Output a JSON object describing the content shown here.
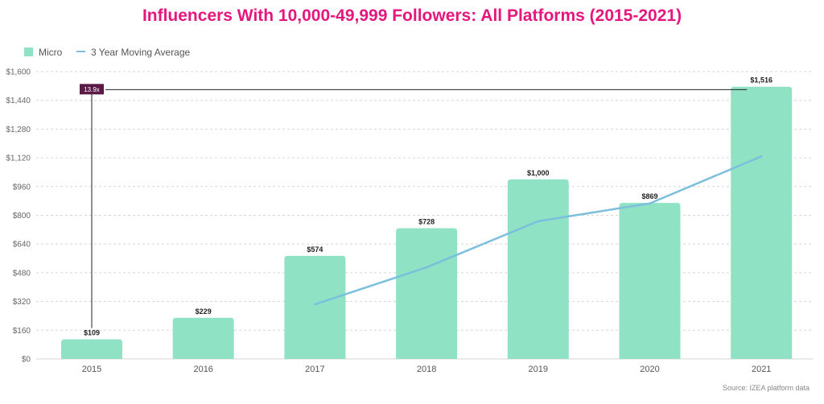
{
  "chart_data": {
    "type": "bar",
    "title": "Influencers With 10,000-49,999 Followers: All Platforms (2015-2021)",
    "categories": [
      "2015",
      "2016",
      "2017",
      "2018",
      "2019",
      "2020",
      "2021"
    ],
    "series": [
      {
        "name": "Micro",
        "type": "bar",
        "values": [
          109,
          229,
          574,
          728,
          1000,
          869,
          1516
        ],
        "labels": [
          "$109",
          "$229",
          "$574",
          "$728",
          "$1,000",
          "$869",
          "$1,516"
        ]
      },
      {
        "name": "3 Year Moving Average",
        "type": "line",
        "values": [
          null,
          null,
          304,
          510,
          767,
          866,
          1128
        ]
      }
    ],
    "ylim": [
      0,
      1600
    ],
    "yticks": [
      0,
      160,
      320,
      480,
      640,
      800,
      960,
      1120,
      1280,
      1440,
      1600
    ],
    "ytick_labels": [
      "$0",
      "$160",
      "$320",
      "$480",
      "$640",
      "$800",
      "$960",
      "$1,120",
      "$1,280",
      "$1,440",
      "$1,600"
    ],
    "grid": true,
    "legend": "top-left",
    "annotation": {
      "text": "13.9x",
      "from": "2015",
      "to": "2021",
      "level": 1500
    },
    "source": "Source: IZEA platform data",
    "colors": {
      "bar": "#8fe3c4",
      "line": "#7bbfdc",
      "title": "#e5177e",
      "callout": "#5a1a45",
      "grid": "#d6d6d6"
    }
  }
}
